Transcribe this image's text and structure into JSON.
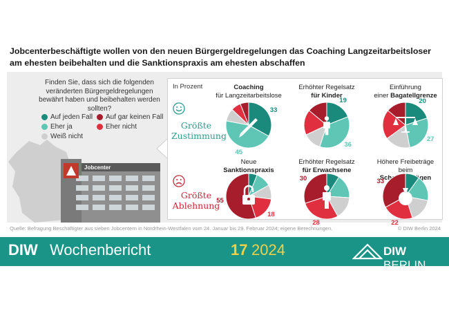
{
  "title": "Jobcenterbeschäftigte wollen von den neuen Bürgergeldregelungen das Coaching Langzeitarbeitsloser am ehesten beibehalten und die Sanktionspraxis am ehesten abschaffen",
  "question": "Finden Sie, dass sich die folgenden veränderten Bürgergeldregelungen bewährt haben und beibehalten werden sollten?",
  "unit": "In Prozent",
  "building_sign": "Jobcenter",
  "legend": [
    {
      "label": "Auf jeden Fall",
      "color": "#1a8a7c"
    },
    {
      "label": "Auf gar keinen Fall",
      "color": "#a81d2b"
    },
    {
      "label": "Eher ja",
      "color": "#5fc5b4"
    },
    {
      "label": "Eher nicht",
      "color": "#e0303f"
    },
    {
      "label": "Weiß nicht",
      "color": "#cfcfcf"
    }
  ],
  "groups": {
    "positive": {
      "line1": "Größte",
      "line2": "Zustimmung",
      "icon": "smiley-face-icon"
    },
    "negative": {
      "line1": "Größte",
      "line2": "Ablehnung",
      "icon": "frowning-face-icon"
    }
  },
  "chart_data": {
    "type": "pie",
    "slice_order": [
      "Auf jeden Fall",
      "Eher ja",
      "Weiß nicht",
      "Eher nicht",
      "Auf gar keinen Fall"
    ],
    "charts": [
      {
        "line1": "Coaching",
        "line2": "für Langzeitarbeitslose",
        "bold": "Coaching",
        "icon": "pen-icon",
        "values": [
          33,
          45,
          9,
          7,
          6
        ],
        "labels": {
          "Auf jeden Fall": "33",
          "Eher ja": "45"
        }
      },
      {
        "line1": "Erhöhter Regelsatz",
        "line2": "für Kinder",
        "bold": "Regelsatz für Kinder",
        "icon": "child-icon",
        "values": [
          19,
          36,
          13,
          18,
          14
        ],
        "labels": {
          "Auf jeden Fall": "19",
          "Eher ja": "36"
        }
      },
      {
        "line1": "Einführung",
        "line2": "einer Bagatellgrenze",
        "bold": "Bagatellgrenze",
        "icon": "scale-icon",
        "values": [
          20,
          27,
          18,
          21,
          14
        ],
        "labels": {
          "Auf jeden Fall": "20",
          "Eher ja": "27"
        }
      },
      {
        "line1": "Neue",
        "line2": "Sanktionspraxis",
        "bold": "Sanktionspraxis",
        "icon": "padlock-icon",
        "values": [
          6,
          11,
          10,
          18,
          55
        ],
        "labels": {
          "Eher nicht": "18",
          "Auf gar keinen Fall": "55"
        }
      },
      {
        "line1": "Erhöhter Regelsatz",
        "line2": "für Erwachsene",
        "bold": "Regelsatz für Erwachsene",
        "icon": "adult-icon",
        "values": [
          9,
          17,
          16,
          28,
          30
        ],
        "labels": {
          "Eher nicht": "28",
          "Auf gar keinen Fall": "30"
        }
      },
      {
        "line1": "Höhere Freibeträge",
        "line2": "beim Schonvermögen",
        "bold": "Schonvermögen",
        "icon": "money-bag-icon",
        "values": [
          10,
          18,
          17,
          22,
          33
        ],
        "labels": {
          "Eher nicht": "22",
          "Auf gar keinen Fall": "33"
        }
      }
    ]
  },
  "source": "Quelle: Befragung Beschäftigter aus sieben Jobcentern in Nordrhein-Westfalen vom 24. Januar bis 29. Februar 2024; eigene Berechnungen.",
  "copyright": "© DIW Berlin 2024",
  "banner": {
    "brand": "DIW",
    "publication": "Wochenbericht",
    "issue": "17",
    "year": "2024",
    "logo_brand": "DIW",
    "logo_city": "BERLIN"
  }
}
